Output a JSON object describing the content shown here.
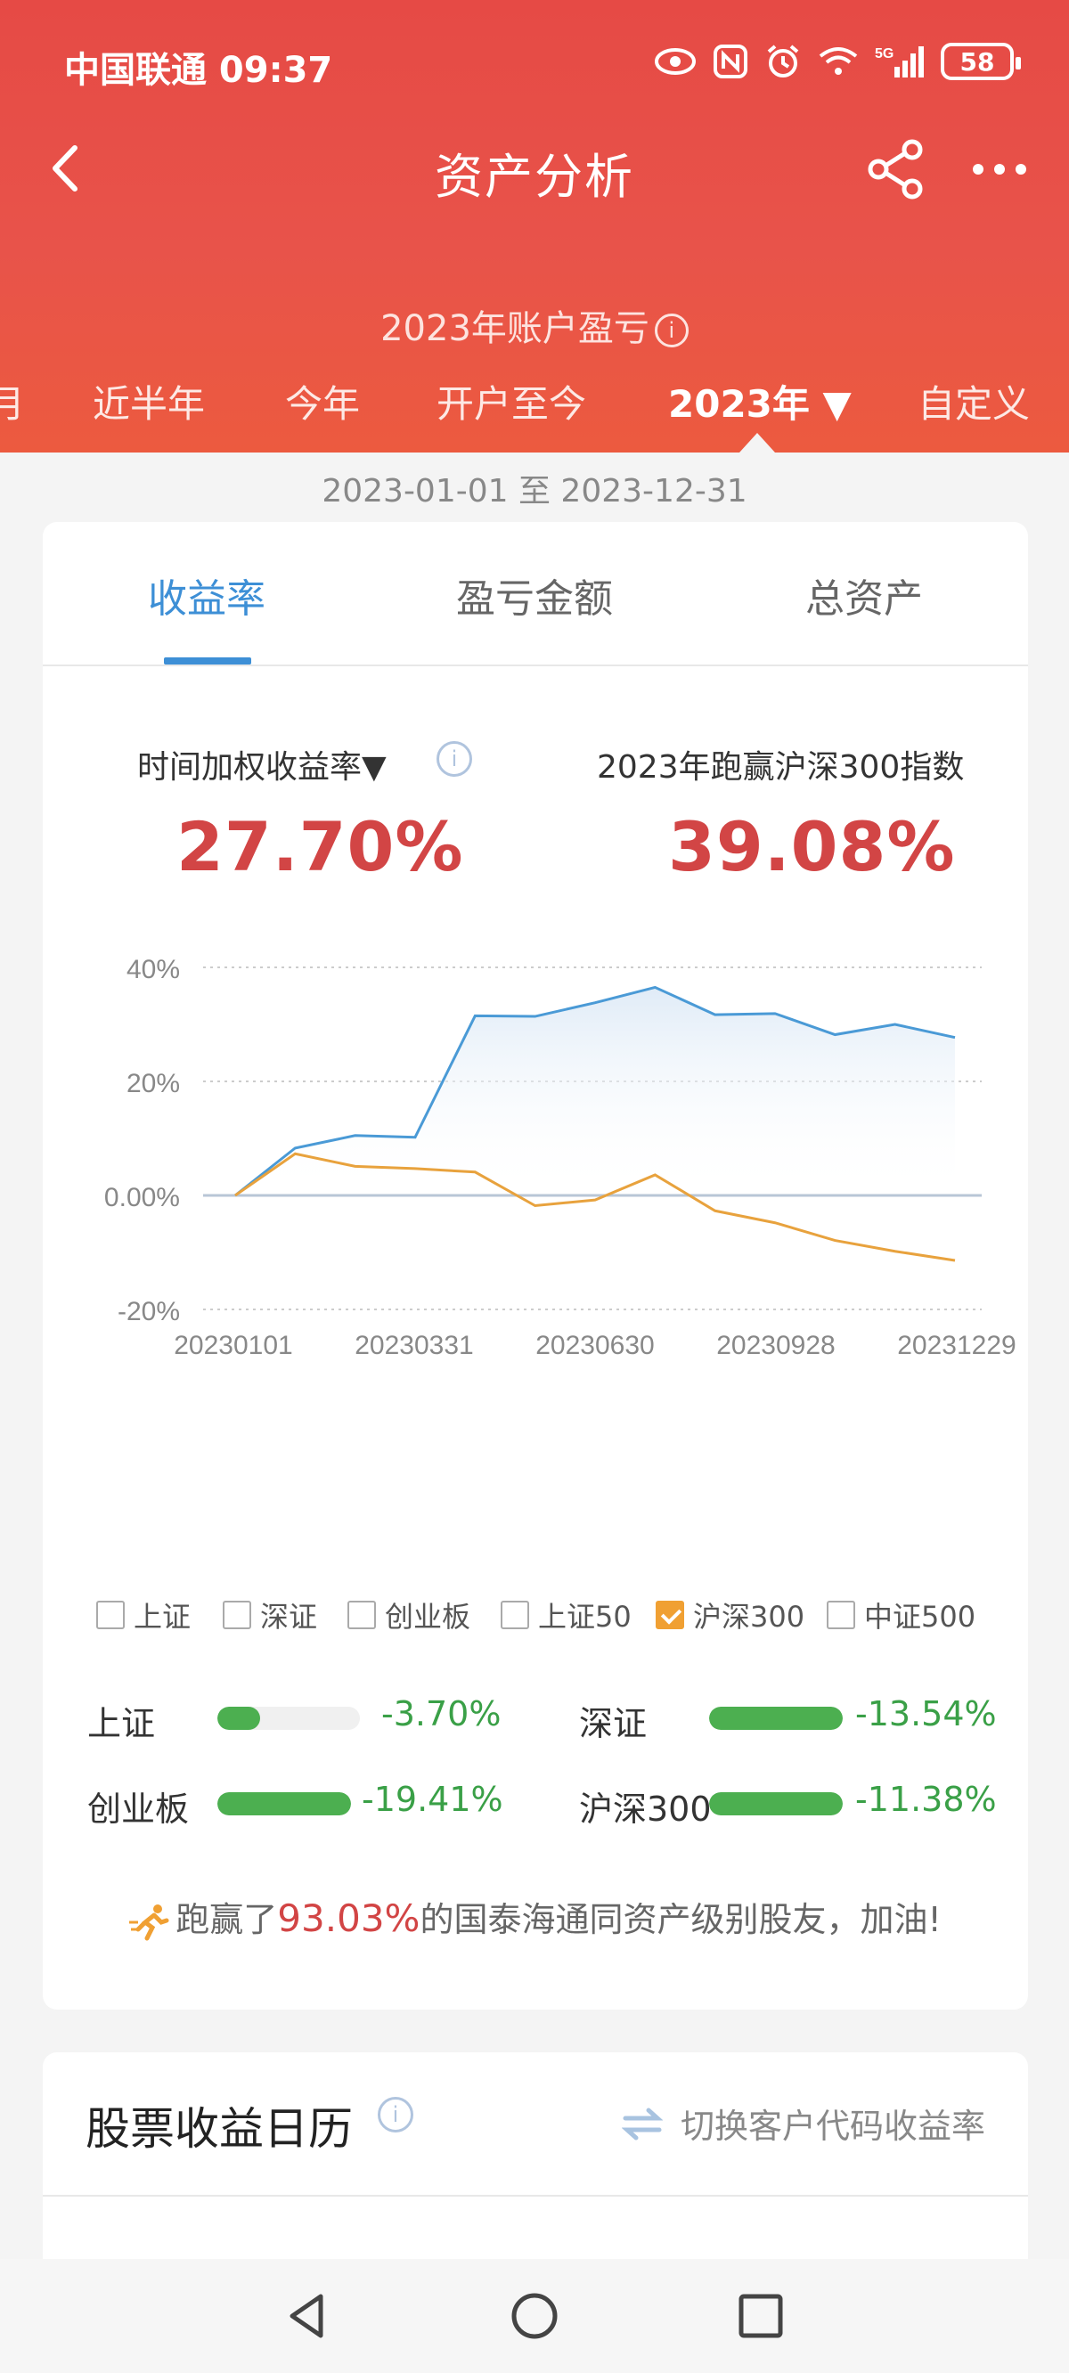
{
  "status_bar": {
    "carrier_time": "中国联通 09:37",
    "battery": "58",
    "network": "5G"
  },
  "nav": {
    "title": "资产分析"
  },
  "summary": {
    "title": "2023年账户盈亏",
    "info_icon": "i"
  },
  "periods": [
    {
      "label": "月"
    },
    {
      "label": "近半年"
    },
    {
      "label": "今年"
    },
    {
      "label": "开户至今"
    },
    {
      "label": "2023年 ▼"
    },
    {
      "label": "自定义"
    }
  ],
  "date_range": "2023-01-01 至 2023-12-31",
  "tabs": [
    {
      "label": "收益率"
    },
    {
      "label": "盈亏金额"
    },
    {
      "label": "总资产"
    }
  ],
  "metrics": {
    "left_label": "时间加权收益率▼",
    "left_value": "27.70%",
    "right_label": "2023年跑赢沪深300指数",
    "right_value": "39.08%"
  },
  "chart_data": {
    "type": "line",
    "y_ticks": [
      "40%",
      "20%",
      "0.00%",
      "-20%"
    ],
    "ylim": [
      -20,
      40
    ],
    "x_ticks": [
      "20230101",
      "20230331",
      "20230630",
      "20230928",
      "20231229"
    ],
    "series": [
      {
        "name": "收益率",
        "color": "#4a9ad6",
        "values": [
          0,
          8.3,
          10.5,
          10.2,
          31.5,
          31.4,
          33.8,
          36.5,
          31.7,
          31.9,
          28.2,
          30.0,
          27.7
        ]
      },
      {
        "name": "沪深300",
        "color": "#e8a23d",
        "values": [
          0,
          7.3,
          5.1,
          4.7,
          4.1,
          -1.8,
          -0.8,
          3.6,
          -2.7,
          -4.8,
          -7.9,
          -9.8,
          -11.4
        ]
      }
    ]
  },
  "legend": [
    {
      "label": "上证",
      "checked": false
    },
    {
      "label": "深证",
      "checked": false
    },
    {
      "label": "创业板",
      "checked": false
    },
    {
      "label": "上证50",
      "checked": false
    },
    {
      "label": "沪深300",
      "checked": true
    },
    {
      "label": "中证500",
      "checked": false
    }
  ],
  "comparison": [
    {
      "label": "上证",
      "value": "-3.70%",
      "fill": 0.3
    },
    {
      "label": "深证",
      "value": "-13.54%",
      "fill": 1.0
    },
    {
      "label": "创业板",
      "value": "-19.41%",
      "fill": 1.0
    },
    {
      "label": "沪深300",
      "value": "-11.38%",
      "fill": 1.0
    }
  ],
  "beat": {
    "prefix": "跑赢了",
    "percent": "93.03%",
    "suffix": "的国泰海通同资产级别股友，加油!"
  },
  "calendar": {
    "title": "股票收益日历",
    "switch_label": "切换客户代码收益率"
  },
  "colors": {
    "header": "#e64a45",
    "accent_blue": "#3d8fd6",
    "red": "#d24545",
    "green": "#3aa047",
    "orange": "#f0a033"
  }
}
